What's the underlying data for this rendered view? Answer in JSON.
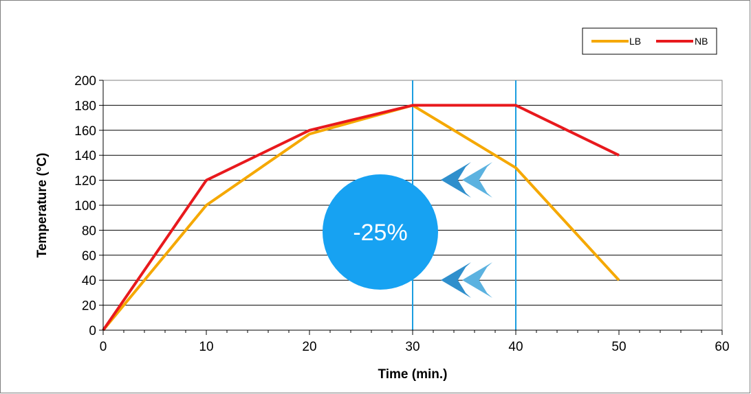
{
  "chart_data": {
    "type": "line",
    "xlabel": "Time (min.)",
    "ylabel": "Temperature (°C)",
    "xlim": [
      0,
      60
    ],
    "ylim": [
      0,
      200
    ],
    "x_ticks": [
      0,
      10,
      20,
      30,
      40,
      50,
      60
    ],
    "y_ticks": [
      0,
      20,
      40,
      60,
      80,
      100,
      120,
      140,
      160,
      180,
      200
    ],
    "grid": "horizontal",
    "legend_position": "top-right",
    "series": [
      {
        "name": "LB",
        "color": "#f5a800",
        "x": [
          0,
          10,
          20,
          30,
          40,
          50
        ],
        "y": [
          0,
          100,
          157,
          180,
          130,
          40
        ]
      },
      {
        "name": "NB",
        "color": "#e8191d",
        "x": [
          0,
          10,
          20,
          30,
          40,
          50
        ],
        "y": [
          0,
          120,
          160,
          180,
          180,
          140
        ]
      }
    ],
    "reference_lines_x": [
      30,
      40
    ],
    "reference_line_color": "#1a9de0",
    "annotation": {
      "text": "-25%",
      "color": "#17a2f2"
    },
    "arrow_icon": "double-chevron-left-icon",
    "arrow_colors": [
      "#2f8fcc",
      "#5bb2e0"
    ]
  }
}
